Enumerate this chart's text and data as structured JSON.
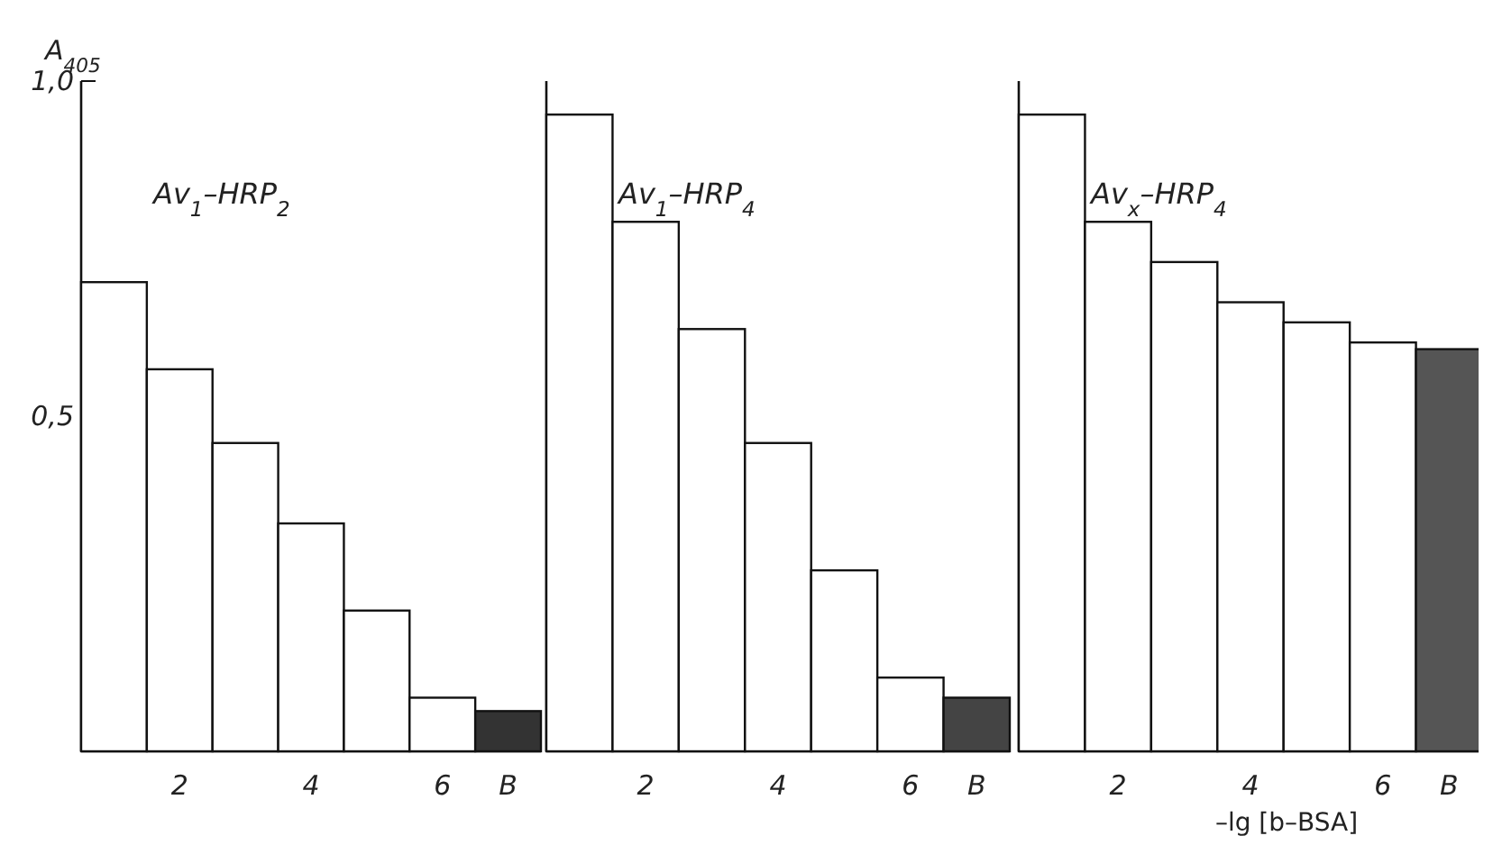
{
  "chart_data": [
    {
      "type": "bar",
      "title": "Av$_{1}$–HRP$_{2}$",
      "ylabel": "A$_{405}$",
      "categories": [
        null,
        "2",
        null,
        "4",
        null,
        "6",
        "B"
      ],
      "values": [
        0.7,
        0.57,
        0.46,
        0.34,
        0.21,
        0.08,
        0.06
      ],
      "colors": [
        "#ffffff",
        "#ffffff",
        "#ffffff",
        "#ffffff",
        "#ffffff",
        "#ffffff",
        "#333333"
      ],
      "ylim": [
        0,
        1.0
      ],
      "yticks": [
        {
          "value": 0.5,
          "label": "0,5"
        },
        {
          "value": 1.0,
          "label": "1,0"
        }
      ],
      "grid": false
    },
    {
      "type": "bar",
      "title": "Av$_{1}$–HRP$_{4}$",
      "categories": [
        null,
        "2",
        null,
        "4",
        null,
        "6",
        "B"
      ],
      "values": [
        0.95,
        0.79,
        0.63,
        0.46,
        0.27,
        0.11,
        0.08
      ],
      "colors": [
        "#ffffff",
        "#ffffff",
        "#ffffff",
        "#ffffff",
        "#ffffff",
        "#ffffff",
        "#444444"
      ],
      "ylim": [
        0,
        1.0
      ],
      "tick_labels": "x",
      "grid": false
    },
    {
      "type": "bar",
      "title": "Av$_{x}$–HRP$_{4}$",
      "xlabel": "–lg [b–BSA]",
      "categories": [
        null,
        "2",
        null,
        "4",
        null,
        "6",
        "B"
      ],
      "values": [
        0.95,
        0.79,
        0.73,
        0.67,
        0.64,
        0.61,
        0.6
      ],
      "colors": [
        "#ffffff",
        "#ffffff",
        "#ffffff",
        "#ffffff",
        "#ffffff",
        "#ffffff",
        "#555555"
      ],
      "ylim": [
        0,
        1.0
      ],
      "tick_labels": "x",
      "grid": false
    }
  ]
}
